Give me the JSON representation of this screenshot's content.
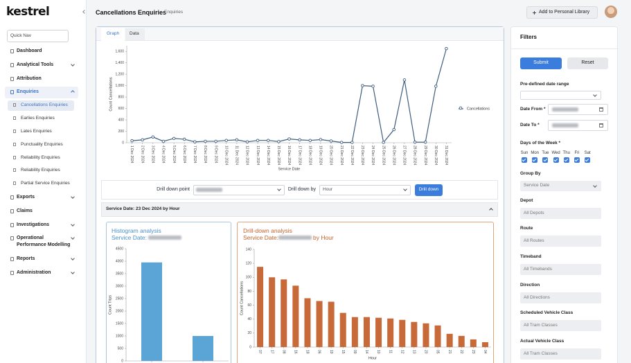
{
  "sidebar": {
    "logo": "kestrel",
    "quick_nav": "Quick Nav",
    "nav": [
      "Dashboard",
      "Analytical Tools",
      "Attribution",
      "Enquiries"
    ],
    "subnav": [
      "Cancellations Enquiries",
      "Earlies Enquiries",
      "Lates Enquiries",
      "Punctuality Enquiries",
      "Reliability Enquiries",
      "Reliability Enquiries",
      "Partial Service Enquiries"
    ],
    "nav_more": [
      "Exports",
      "Claims",
      "Investigations",
      "Operational Performance Modelling",
      "Reports",
      "Administration"
    ]
  },
  "header": {
    "title": "Cancellations Enquiries",
    "breadcrumb": "Enquiries",
    "library_button": "Add to Personal Library"
  },
  "tabs": [
    "Graph",
    "Data"
  ],
  "chart_data": [
    {
      "type": "line",
      "ylabel": "Count Cancellations",
      "xlabel": "Service Date",
      "legend": "right",
      "categories": [
        "1 Dec 2024",
        "2 Dec 2024",
        "3 Dec 2024",
        "4 Dec 2024",
        "5 Dec 2024",
        "6 Dec 2024",
        "7 Dec 2024",
        "8 Dec 2024",
        "9 Dec 2024",
        "10 Dec 2024",
        "11 Dec 2024",
        "12 Dec 2024",
        "13 Dec 2024",
        "14 Dec 2024",
        "15 Dec 2024",
        "16 Dec 2024",
        "17 Dec 2024",
        "18 Dec 2024",
        "19 Dec 2024",
        "20 Dec 2024",
        "21 Dec 2024",
        "22 Dec 2024",
        "23 Dec 2024",
        "24 Dec 2024",
        "25 Dec 2024",
        "26 Dec 2024",
        "27 Dec 2024",
        "28 Dec 2024",
        "29 Dec 2024",
        "30 Dec 2024",
        "31 Dec 2024"
      ],
      "series": [
        {
          "name": "Cancellations",
          "color": "#3e5c7e",
          "values": [
            35,
            50,
            100,
            25,
            75,
            60,
            15,
            25,
            25,
            40,
            50,
            15,
            40,
            40,
            20,
            65,
            50,
            40,
            55,
            30,
            5,
            5,
            1000,
            990,
            5,
            230,
            1100,
            10,
            10,
            990,
            1650
          ]
        }
      ],
      "ylim": [
        0,
        1700
      ],
      "yticks": [
        0,
        200,
        400,
        600,
        800,
        {
          "value": 1000,
          "label": "1,000"
        },
        {
          "value": 1200,
          "label": "1,200"
        },
        {
          "value": 1400,
          "label": "1,400"
        },
        {
          "value": 1600,
          "label": "1,600"
        }
      ],
      "grid": false
    },
    {
      "type": "bar",
      "title": "Histogram analysis",
      "subtitle": "Service Date:",
      "ylabel": "Count Trips",
      "color": "#5aa5d6",
      "categories": [
        null,
        null
      ],
      "values": [
        3950,
        1000
      ],
      "ylim": [
        0,
        4500
      ],
      "yticks": [
        0,
        500,
        1000,
        1500,
        2000,
        2500,
        3000,
        3500,
        4000,
        4500
      ],
      "grid": false
    },
    {
      "type": "bar",
      "title": "Drill-down analysis",
      "subtitle": "Service Date:",
      "subtitle_suffix": "by Hour",
      "ylabel": "Count Cancellations",
      "xlabel": "Hour",
      "color": "#c8693a",
      "categories": [
        "07",
        "17",
        "08",
        "16",
        "18",
        "06",
        "19",
        "15",
        "09",
        "14",
        "10",
        "11",
        "12",
        "13",
        "20",
        "05",
        "21",
        "22",
        "23",
        "04"
      ],
      "values": [
        115,
        100,
        97,
        88,
        70,
        66,
        65,
        49,
        43,
        43,
        42,
        41,
        39,
        36,
        34,
        31,
        19,
        16,
        11,
        7
      ],
      "ylim": [
        0,
        140
      ],
      "yticks": [
        0,
        20,
        40,
        60,
        80,
        100,
        120,
        140
      ],
      "grid": false
    }
  ],
  "drill_controls": {
    "point_label": "Drill down point",
    "by_label": "Drill down by",
    "by_value": "Hour",
    "button": "Drill down"
  },
  "section_title": "Service Date: 23 Dec 2024 by Hour",
  "filters": {
    "title": "Filters",
    "submit": "Submit",
    "reset": "Reset",
    "date_range_label": "Pre-defined date range",
    "date_from_label": "Date From *",
    "date_to_label": "Date To *",
    "days_label": "Days of the Week *",
    "days": [
      "Sun",
      "Mon",
      "Tue",
      "Wed",
      "Thu",
      "Fri",
      "Sat"
    ],
    "group_by_label": "Group By",
    "group_by_value": "Service Date",
    "fields": [
      {
        "label": "Depot",
        "value": "All Depots"
      },
      {
        "label": "Route",
        "value": "All Routes"
      },
      {
        "label": "Timeband",
        "value": "All Timebands"
      },
      {
        "label": "Direction",
        "value": "All Directions"
      },
      {
        "label": "Scheduled Vehicle Class",
        "value": "All Tram Classes"
      },
      {
        "label": "Actual Vehicle Class",
        "value": "All Tram Classes"
      }
    ]
  }
}
